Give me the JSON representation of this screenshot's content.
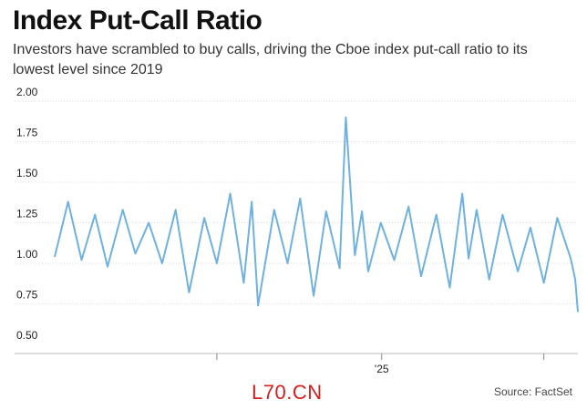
{
  "header": {
    "title": "Index Put-Call Ratio",
    "subtitle": "Investors have scrambled to buy calls, driving the Cboe index put-call ratio to its lowest level since 2019"
  },
  "footer": {
    "watermark": "L70.CN",
    "source": "Source: FactSet"
  },
  "colors": {
    "line": "#6fb1e0",
    "grid": "#dddddd",
    "axis": "#bbbbbb"
  },
  "chart_data": {
    "type": "line",
    "title": "Index Put-Call Ratio",
    "xlabel": "",
    "ylabel": "",
    "ylim": [
      0.5,
      2.0
    ],
    "yticks": [
      0.5,
      0.75,
      1.0,
      1.25,
      1.5,
      1.75,
      2.0
    ],
    "ytick_labels": [
      "0.50",
      "0.75",
      "1.00",
      "1.25",
      "1.50",
      "1.75",
      "2.00"
    ],
    "x_range": [
      "2024-01-02",
      "2025-08-08"
    ],
    "x_ticks": [
      {
        "date": "2024-07-01",
        "label": ""
      },
      {
        "date": "2025-01-01",
        "label": "'25"
      },
      {
        "date": "2025-07-01",
        "label": ""
      }
    ],
    "grid": "horizontal",
    "series": [
      {
        "x": [
          "2024-01-02",
          "2024-01-17",
          "2024-02-01",
          "2024-02-16",
          "2024-03-01",
          "2024-03-18",
          "2024-04-01",
          "2024-04-16",
          "2024-05-01",
          "2024-05-16",
          "2024-05-31",
          "2024-06-17",
          "2024-07-01",
          "2024-07-16",
          "2024-07-31",
          "2024-08-09",
          "2024-08-16",
          "2024-09-03",
          "2024-09-18",
          "2024-10-02",
          "2024-10-17",
          "2024-10-31",
          "2024-11-15",
          "2024-11-22",
          "2024-12-02",
          "2024-12-10",
          "2024-12-17",
          "2024-12-31",
          "2025-01-15",
          "2025-01-31",
          "2025-02-14",
          "2025-03-03",
          "2025-03-18",
          "2025-04-01",
          "2025-04-08",
          "2025-04-17",
          "2025-05-01",
          "2025-05-16",
          "2025-06-02",
          "2025-06-16",
          "2025-07-01",
          "2025-07-16",
          "2025-07-31",
          "2025-08-05",
          "2025-08-08"
        ],
        "values": [
          1.04,
          1.38,
          1.02,
          1.3,
          0.98,
          1.33,
          1.06,
          1.25,
          1.0,
          1.33,
          0.82,
          1.28,
          1.0,
          1.43,
          0.88,
          1.38,
          0.74,
          1.33,
          1.0,
          1.4,
          0.8,
          1.32,
          0.97,
          1.9,
          1.05,
          1.32,
          0.95,
          1.25,
          1.02,
          1.35,
          0.92,
          1.3,
          0.85,
          1.43,
          1.03,
          1.33,
          0.9,
          1.3,
          0.95,
          1.22,
          0.88,
          1.28,
          1.03,
          0.9,
          0.7
        ]
      }
    ]
  }
}
